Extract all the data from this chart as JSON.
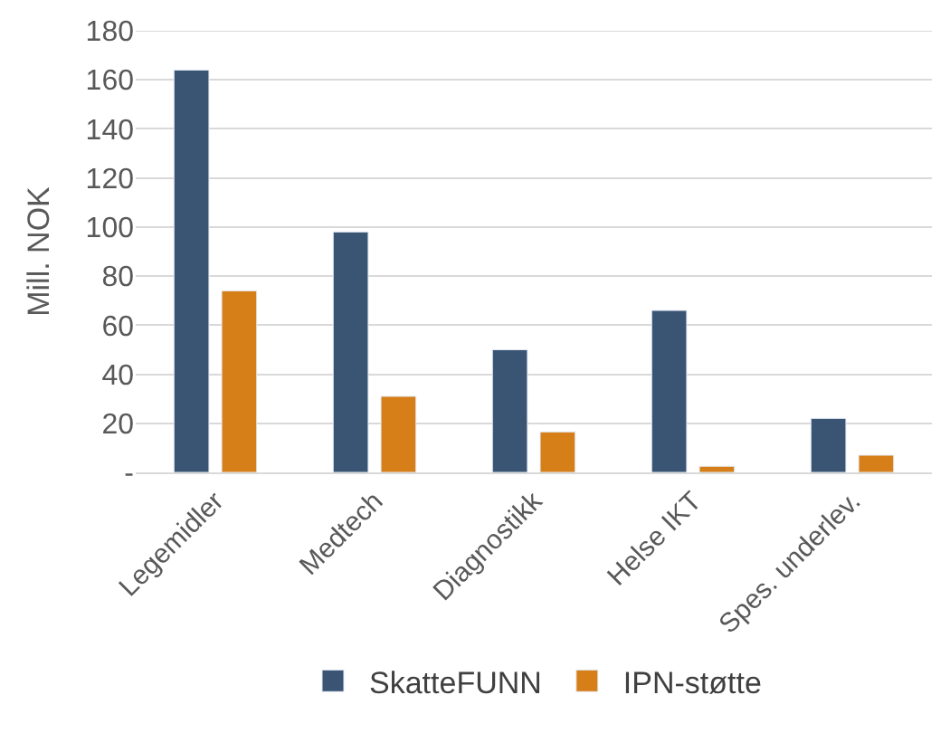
{
  "chart_data": {
    "type": "bar",
    "ylabel": "Mill. NOK",
    "categories": [
      "Legemidler",
      "Medtech",
      "Diagnostikk",
      "Helse IKT",
      "Spes. underlev."
    ],
    "series": [
      {
        "name": "SkatteFUNN",
        "color": "#3a5574",
        "values": [
          164,
          98,
          50,
          66,
          22
        ]
      },
      {
        "name": "IPN-støtte",
        "color": "#d67e17",
        "values": [
          74,
          31,
          16.5,
          2.5,
          7
        ]
      }
    ],
    "ylim": [
      0,
      180
    ],
    "yticks": [
      {
        "value": 0,
        "label": "-"
      },
      20,
      40,
      60,
      80,
      100,
      120,
      140,
      160,
      180
    ],
    "grid": "y",
    "legend": "bottom"
  }
}
